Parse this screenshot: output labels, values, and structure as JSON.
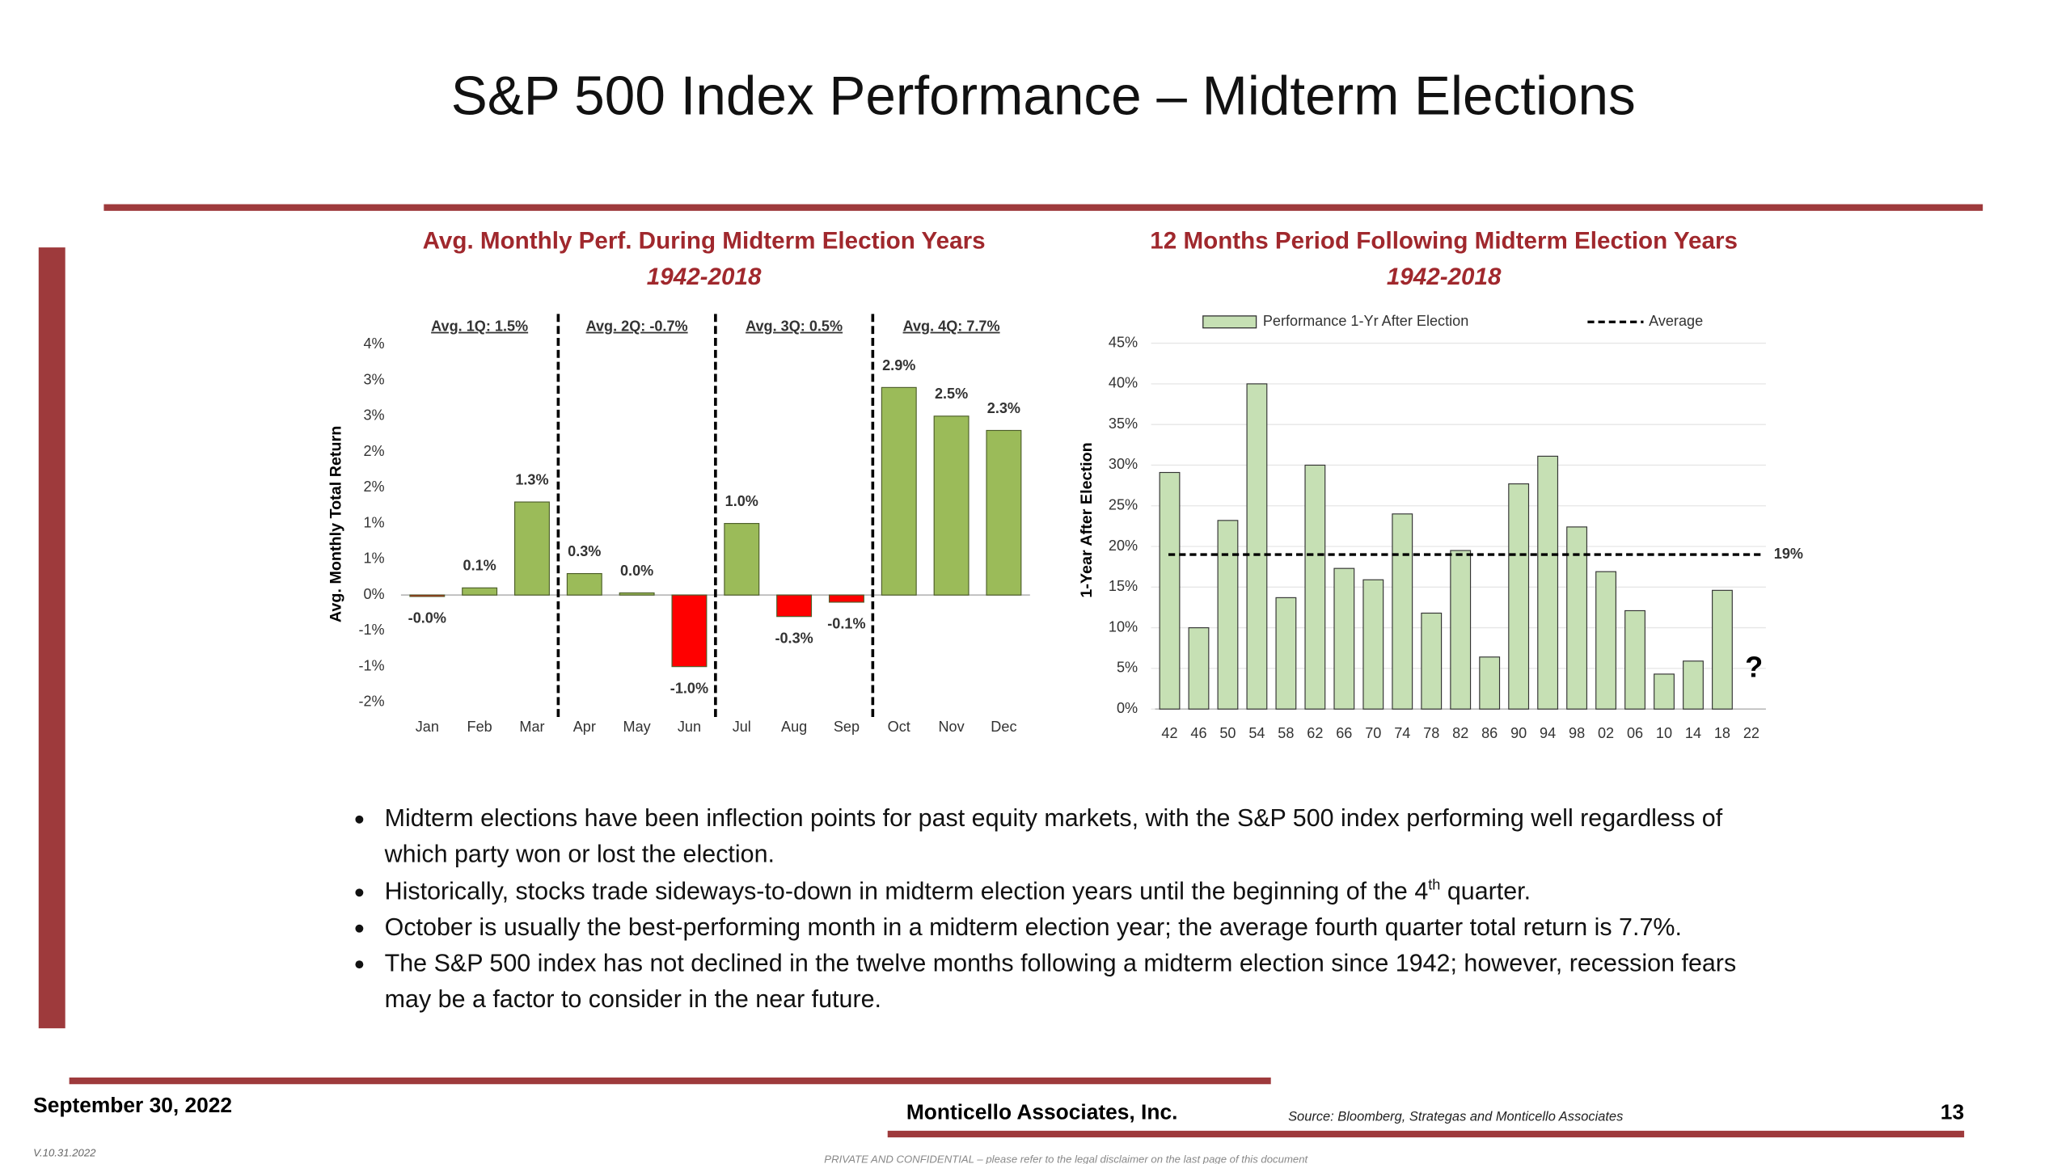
{
  "title": "S&P 500 Index Performance – Midterm Elections",
  "chart_data": [
    {
      "type": "bar",
      "title": "Avg. Monthly Perf. During Midterm Election Years",
      "subtitle": "1942-2018",
      "y_label": "Avg. Monthly Total Return",
      "categories": [
        "Jan",
        "Feb",
        "Mar",
        "Apr",
        "May",
        "Jun",
        "Jul",
        "Aug",
        "Sep",
        "Oct",
        "Nov",
        "Dec"
      ],
      "values": [
        -0.02,
        0.1,
        1.3,
        0.3,
        0.03,
        -1.0,
        1.0,
        -0.3,
        -0.1,
        2.9,
        2.5,
        2.3
      ],
      "value_labels": [
        "-0.0%",
        "0.1%",
        "1.3%",
        "0.3%",
        "0.0%",
        "-1.0%",
        "1.0%",
        "-0.3%",
        "-0.1%",
        "2.9%",
        "2.5%",
        "2.3%"
      ],
      "positive_color": "#9bbb59",
      "negative_color": "#ff0000",
      "ylim": [
        -1.5,
        3.5
      ],
      "yticks": [
        {
          "value": -1.5,
          "label": "-2%"
        },
        {
          "value": -1.0,
          "label": "-1%"
        },
        {
          "value": -0.5,
          "label": "-1%"
        },
        {
          "value": 0,
          "label": "0%"
        },
        {
          "value": 0.5,
          "label": "1%"
        },
        {
          "value": 1.0,
          "label": "1%"
        },
        {
          "value": 1.5,
          "label": "2%"
        },
        {
          "value": 2.0,
          "label": "2%"
        },
        {
          "value": 2.5,
          "label": "3%"
        },
        {
          "value": 3.0,
          "label": "3%"
        },
        {
          "value": 3.5,
          "label": "4%"
        }
      ],
      "annotations": [
        {
          "text": "Avg. 1Q: 1.5%",
          "color": "#000000"
        },
        {
          "text": "Avg. 2Q: -0.7%",
          "color": "#ff0000"
        },
        {
          "text": "Avg. 3Q: 0.5%",
          "color": "#000000"
        },
        {
          "text": "Avg. 4Q: 7.7%",
          "color": "#000000"
        }
      ]
    },
    {
      "type": "bar",
      "title": "12 Months Period Following Midterm Election Years",
      "subtitle": "1942-2018",
      "y_label": "1-Year After Election",
      "categories": [
        "42",
        "46",
        "50",
        "54",
        "58",
        "62",
        "66",
        "70",
        "74",
        "78",
        "82",
        "86",
        "90",
        "94",
        "98",
        "02",
        "06",
        "10",
        "14",
        "18",
        "22"
      ],
      "series": [
        {
          "name": "Performance 1-Yr After Election",
          "color": "#c6e0b4",
          "values": [
            29.1,
            10,
            23.2,
            40,
            13.7,
            30,
            17.3,
            15.9,
            24,
            11.8,
            19.5,
            6.4,
            27.7,
            31.1,
            22.4,
            16.9,
            12.1,
            4.3,
            5.9,
            14.6,
            null
          ]
        }
      ],
      "average": {
        "name": "Average",
        "value": 19,
        "label": "19%",
        "color": "#000000"
      },
      "annotation": "?",
      "ylim": [
        0,
        45
      ],
      "yticks": [
        {
          "value": 0,
          "label": "0%"
        },
        {
          "value": 5,
          "label": "5%"
        },
        {
          "value": 10,
          "label": "10%"
        },
        {
          "value": 15,
          "label": "15%"
        },
        {
          "value": 20,
          "label": "20%"
        },
        {
          "value": 25,
          "label": "25%"
        },
        {
          "value": 30,
          "label": "30%"
        },
        {
          "value": 35,
          "label": "35%"
        },
        {
          "value": 40,
          "label": "40%"
        },
        {
          "value": 45,
          "label": "45%"
        }
      ],
      "grid": true
    }
  ],
  "bullets": [
    "Midterm elections have been inflection points for past equity markets, with the S&P 500 index performing well regardless of which party won or lost the election.",
    {
      "text": "Historically, stocks trade sideways-to-down in midterm election years until the beginning of the 4",
      "sup": "th",
      "rest": " quarter."
    },
    "October is usually the best-performing month in a midterm election year; the average fourth quarter total return is 7.7%.",
    "The S&P 500 index has not declined in the twelve months following a midterm election since 1942; however, recession fears may be a factor to consider in the near future."
  ],
  "footer": {
    "date": "September 30, 2022",
    "company": "Monticello Associates, Inc.",
    "source": "Source: Bloomberg, Strategas and Monticello Associates",
    "page": "13",
    "version": "V.10.31.2022",
    "disclaimer": "PRIVATE AND CONFIDENTIAL – please refer to the legal disclaimer on the last page of this document"
  }
}
